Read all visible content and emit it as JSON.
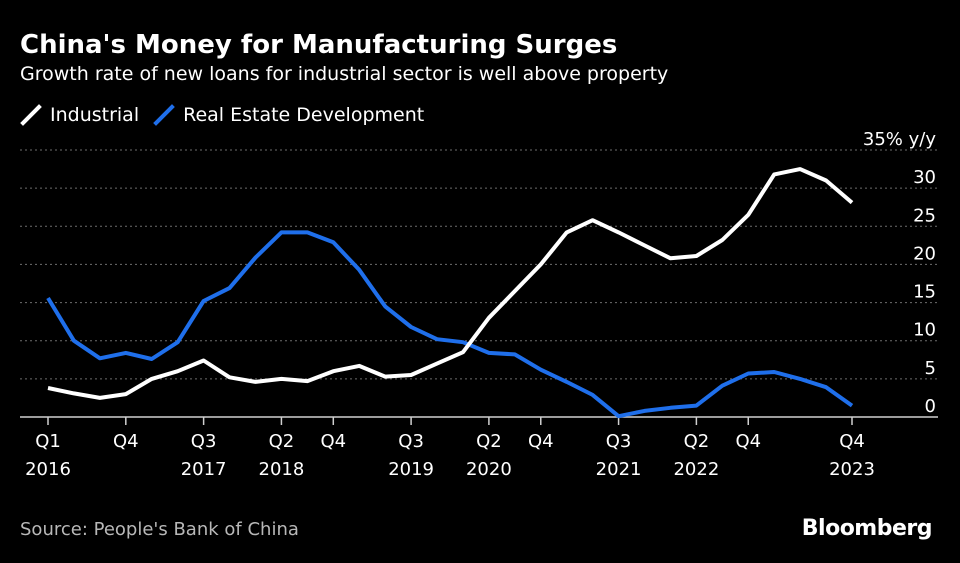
{
  "header": {
    "title": "China's Money for Manufacturing Surges",
    "subtitle": "Growth rate of new loans for industrial sector is well above property"
  },
  "footer": {
    "source": "Source: People's Bank of China",
    "logo": "Bloomberg"
  },
  "colors": {
    "background": "#000000",
    "industrial": "#ffffff",
    "real_estate": "#1f6feb",
    "grid": "#6e6e6e",
    "text": "#ffffff",
    "muted_text": "#b8b8b8"
  },
  "chart_data": {
    "type": "line",
    "title": "China's Money for Manufacturing Surges",
    "subtitle": "Growth rate of new loans for industrial sector is well above property",
    "x": [
      "2016 Q1",
      "2016 Q2",
      "2016 Q3",
      "2016 Q4",
      "2017 Q1",
      "2017 Q2",
      "2017 Q3",
      "2017 Q4",
      "2018 Q1",
      "2018 Q2",
      "2018 Q3",
      "2018 Q4",
      "2019 Q1",
      "2019 Q2",
      "2019 Q3",
      "2019 Q4",
      "2020 Q1",
      "2020 Q2",
      "2020 Q3",
      "2020 Q4",
      "2021 Q1",
      "2021 Q2",
      "2021 Q3",
      "2021 Q4",
      "2022 Q1",
      "2022 Q2",
      "2022 Q3",
      "2022 Q4",
      "2023 Q1",
      "2023 Q2",
      "2023 Q3",
      "2023 Q4"
    ],
    "series": [
      {
        "name": "Industrial",
        "color": "#ffffff",
        "values": [
          3.8,
          3.1,
          2.5,
          3.0,
          5.0,
          6.0,
          7.4,
          5.2,
          4.6,
          5.0,
          4.7,
          6.0,
          6.7,
          5.3,
          5.5,
          7.0,
          8.5,
          13.0,
          16.5,
          20.0,
          24.2,
          25.8,
          24.2,
          22.5,
          20.8,
          21.1,
          23.2,
          26.5,
          31.8,
          32.5,
          31.0,
          28.1
        ]
      },
      {
        "name": "Real Estate Development",
        "color": "#1f6feb",
        "values": [
          15.6,
          10.0,
          7.7,
          8.4,
          7.6,
          9.8,
          15.2,
          16.9,
          20.9,
          24.2,
          24.2,
          22.9,
          19.3,
          14.5,
          11.8,
          10.2,
          9.8,
          8.4,
          8.2,
          6.2,
          4.6,
          2.9,
          0.1,
          0.8,
          1.2,
          1.5,
          4.1,
          5.7,
          5.9,
          5.0,
          3.9,
          1.5
        ]
      }
    ],
    "y_ticks": [
      0,
      5,
      10,
      15,
      20,
      25,
      30,
      35
    ],
    "y_top_label": "35% y/y",
    "ylim": [
      0,
      35
    ],
    "x_tick_labels": [
      {
        "index": 0,
        "top": "Q1",
        "bottom": "2016"
      },
      {
        "index": 3,
        "top": "Q4",
        "bottom": ""
      },
      {
        "index": 6,
        "top": "Q3",
        "bottom": "2017"
      },
      {
        "index": 9,
        "top": "Q2",
        "bottom": "2018"
      },
      {
        "index": 11,
        "top": "Q4",
        "bottom": ""
      },
      {
        "index": 14,
        "top": "Q3",
        "bottom": "2019"
      },
      {
        "index": 17,
        "top": "Q2",
        "bottom": "2020"
      },
      {
        "index": 19,
        "top": "Q4",
        "bottom": ""
      },
      {
        "index": 22,
        "top": "Q3",
        "bottom": "2021"
      },
      {
        "index": 25,
        "top": "Q2",
        "bottom": "2022"
      },
      {
        "index": 27,
        "top": "Q4",
        "bottom": ""
      },
      {
        "index": 31,
        "top": "Q4",
        "bottom": "2023"
      }
    ],
    "grid": true,
    "legend_position": "top-left"
  }
}
